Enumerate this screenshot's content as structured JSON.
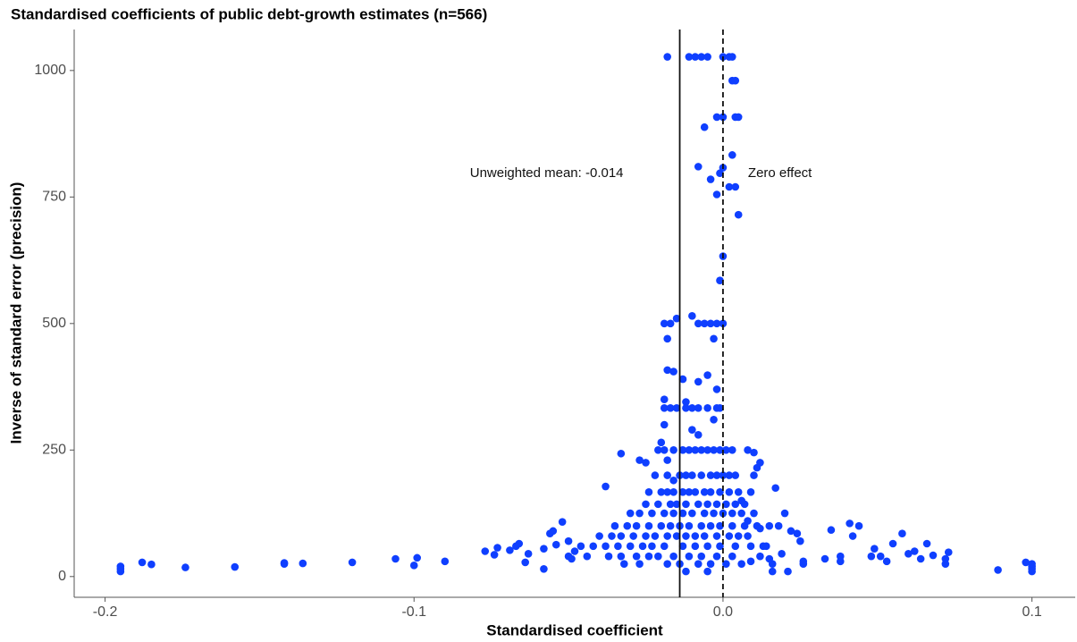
{
  "chart_data": {
    "type": "scatter",
    "title": "Standardised coefficients of public debt-growth estimates (n=566)",
    "x_label": "Standardised coefficient",
    "y_label": "Inverse of standard error (precision)",
    "xlim": [
      -0.21,
      0.114
    ],
    "ylim": [
      -41,
      1081
    ],
    "xticks": [
      -0.2,
      -0.1,
      {
        "value": 0,
        "label": "0.0"
      },
      0.1
    ],
    "yticks": [
      0,
      250,
      500,
      750,
      1000
    ],
    "grid": false,
    "reference_lines": [
      {
        "x": -0.014,
        "style": "solid",
        "label": "Unweighted mean: -0.014"
      },
      {
        "x": 0,
        "style": "dashed",
        "label": "Zero effect"
      }
    ],
    "series": [
      {
        "color": "#0f3fff",
        "x": [
          -0.018,
          -0.011,
          -0.009,
          -0.007,
          -0.005,
          0.0,
          0.002,
          0.003,
          0.003,
          0.004,
          -0.002,
          0.0,
          0.004,
          0.005,
          -0.006,
          0.003,
          -0.008,
          0.0,
          -0.004,
          -0.001,
          0.002,
          0.004,
          -0.002,
          0.005,
          0.0,
          -0.001,
          -0.01,
          -0.015,
          -0.019,
          -0.017,
          -0.008,
          -0.006,
          -0.004,
          -0.002,
          0.0,
          -0.018,
          -0.003,
          -0.018,
          -0.016,
          -0.013,
          -0.008,
          -0.005,
          -0.002,
          -0.012,
          -0.019,
          -0.01,
          -0.008,
          -0.003,
          -0.019,
          -0.02,
          -0.033,
          -0.027,
          -0.025,
          -0.018,
          -0.016,
          -0.038,
          0.011,
          0.012,
          0.01,
          -0.019,
          -0.017,
          -0.015,
          -0.012,
          -0.01,
          -0.008,
          -0.005,
          -0.002,
          -0.001,
          -0.021,
          -0.019,
          -0.016,
          -0.013,
          -0.011,
          -0.009,
          -0.007,
          -0.005,
          -0.003,
          -0.001,
          0.001,
          0.003,
          0.008,
          -0.022,
          -0.018,
          -0.014,
          -0.012,
          -0.01,
          -0.007,
          -0.004,
          -0.002,
          0.0,
          0.002,
          0.004,
          0.01,
          -0.024,
          -0.02,
          -0.018,
          -0.016,
          -0.013,
          -0.011,
          -0.009,
          -0.006,
          -0.004,
          -0.001,
          0.002,
          0.005,
          0.009,
          -0.025,
          -0.021,
          -0.017,
          -0.015,
          -0.012,
          -0.008,
          -0.005,
          -0.002,
          0.001,
          0.004,
          0.007,
          -0.03,
          -0.027,
          -0.023,
          -0.019,
          -0.016,
          -0.013,
          -0.01,
          -0.006,
          -0.003,
          0.0,
          0.003,
          0.006,
          0.01,
          -0.035,
          -0.031,
          -0.028,
          -0.024,
          -0.02,
          -0.017,
          -0.014,
          -0.011,
          -0.007,
          -0.004,
          -0.001,
          0.003,
          0.007,
          0.011,
          0.015,
          -0.04,
          -0.036,
          -0.033,
          -0.029,
          -0.025,
          -0.022,
          -0.018,
          -0.015,
          -0.012,
          -0.009,
          -0.006,
          -0.002,
          0.002,
          0.005,
          0.008,
          -0.042,
          -0.038,
          -0.034,
          -0.03,
          -0.026,
          -0.023,
          -0.019,
          -0.013,
          -0.009,
          -0.005,
          -0.001,
          0.004,
          0.009,
          0.013,
          -0.044,
          -0.037,
          -0.033,
          -0.028,
          -0.024,
          -0.021,
          -0.016,
          -0.011,
          -0.007,
          -0.002,
          0.003,
          0.012,
          -0.032,
          -0.027,
          -0.018,
          -0.014,
          -0.008,
          -0.004,
          0.001,
          0.006,
          -0.012,
          -0.005,
          0.016,
          0.021,
          -0.195,
          -0.195,
          -0.195,
          -0.188,
          -0.185,
          -0.174,
          -0.158,
          -0.142,
          -0.142,
          -0.136,
          -0.12,
          -0.106,
          -0.1,
          -0.099,
          -0.09,
          -0.077,
          -0.074,
          -0.073,
          -0.069,
          -0.067,
          -0.066,
          -0.064,
          -0.063,
          -0.058,
          -0.058,
          -0.056,
          -0.055,
          -0.054,
          -0.052,
          -0.05,
          -0.05,
          -0.049,
          -0.048,
          -0.046,
          0.1,
          0.1,
          0.1,
          0.1,
          0.098,
          0.089,
          0.072,
          0.072,
          0.073,
          0.068,
          0.066,
          0.064,
          0.062,
          0.06,
          0.058,
          0.055,
          0.053,
          0.051,
          0.049,
          0.048,
          0.044,
          0.042,
          0.041,
          0.038,
          0.038,
          0.035,
          0.033,
          0.026,
          0.026,
          0.025,
          0.024,
          0.02,
          0.019,
          0.018,
          0.017,
          0.016,
          0.015,
          0.014,
          0.012,
          0.009,
          0.006,
          0.008,
          0.022
        ],
        "values": [
          1027,
          1027,
          1027,
          1027,
          1027,
          1027,
          1027,
          1027,
          980,
          980,
          908,
          908,
          908,
          908,
          888,
          833,
          810,
          808,
          785,
          797,
          770,
          770,
          755,
          715,
          633,
          585,
          515,
          510,
          500,
          500,
          500,
          500,
          500,
          500,
          500,
          470,
          470,
          408,
          405,
          390,
          385,
          398,
          370,
          345,
          350,
          290,
          280,
          310,
          300,
          265,
          243,
          230,
          225,
          230,
          190,
          178,
          215,
          225,
          245,
          333,
          333,
          333,
          333,
          333,
          333,
          333,
          333,
          333,
          250,
          250,
          250,
          250,
          250,
          250,
          250,
          250,
          250,
          250,
          250,
          250,
          250,
          200,
          200,
          200,
          200,
          200,
          200,
          200,
          200,
          200,
          200,
          200,
          200,
          167,
          167,
          167,
          167,
          167,
          167,
          167,
          167,
          167,
          167,
          167,
          167,
          167,
          143,
          143,
          143,
          143,
          143,
          143,
          143,
          143,
          143,
          143,
          143,
          125,
          125,
          125,
          125,
          125,
          125,
          125,
          125,
          125,
          125,
          125,
          125,
          125,
          100,
          100,
          100,
          100,
          100,
          100,
          100,
          100,
          100,
          100,
          100,
          100,
          100,
          100,
          100,
          80,
          80,
          80,
          80,
          80,
          80,
          80,
          80,
          80,
          80,
          80,
          80,
          80,
          80,
          80,
          60,
          60,
          60,
          60,
          60,
          60,
          60,
          60,
          60,
          60,
          60,
          60,
          60,
          60,
          40,
          40,
          40,
          40,
          40,
          40,
          40,
          40,
          40,
          40,
          40,
          40,
          25,
          25,
          25,
          25,
          25,
          25,
          25,
          25,
          10,
          10,
          10,
          10,
          10,
          15,
          20,
          28,
          24,
          18,
          19,
          25,
          27,
          26,
          28,
          35,
          22,
          37,
          30,
          50,
          43,
          57,
          52,
          60,
          65,
          28,
          45,
          15,
          55,
          85,
          90,
          63,
          108,
          40,
          70,
          35,
          50,
          60,
          10,
          15,
          20,
          25,
          28,
          13,
          25,
          35,
          48,
          42,
          65,
          35,
          50,
          45,
          85,
          65,
          30,
          40,
          55,
          40,
          100,
          80,
          105,
          30,
          40,
          92,
          35,
          25,
          30,
          70,
          85,
          125,
          45,
          100,
          175,
          25,
          35,
          60,
          95,
          30,
          150,
          110,
          90
        ]
      }
    ]
  }
}
